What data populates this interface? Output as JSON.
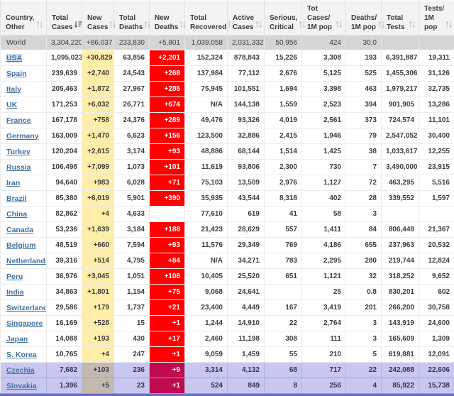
{
  "table": {
    "columns": [
      {
        "key": "name",
        "label": "Country, Other",
        "sort": "unsorted"
      },
      {
        "key": "total_cases",
        "label": "Total Cases",
        "sort": "desc"
      },
      {
        "key": "new_cases",
        "label": "New Cases",
        "sort": "unsorted"
      },
      {
        "key": "total_deaths",
        "label": "Total Deaths",
        "sort": "unsorted"
      },
      {
        "key": "new_deaths",
        "label": "New Deaths",
        "sort": "unsorted"
      },
      {
        "key": "total_recovered",
        "label": "Total Recovered",
        "sort": "unsorted"
      },
      {
        "key": "active_cases",
        "label": "Active Cases",
        "sort": "unsorted"
      },
      {
        "key": "serious_critical",
        "label": "Serious, Critical",
        "sort": "unsorted"
      },
      {
        "key": "tot_cases_1m",
        "label": "Tot Cases/ 1M pop",
        "sort": "unsorted"
      },
      {
        "key": "deaths_1m",
        "label": "Deaths/ 1M pop",
        "sort": "unsorted"
      },
      {
        "key": "total_tests",
        "label": "Total Tests",
        "sort": "unsorted"
      },
      {
        "key": "tests_1m",
        "label": "Tests/ 1M pop",
        "sort": "unsorted"
      }
    ],
    "rows": [
      {
        "type": "world",
        "values": {
          "name": "World",
          "total_cases": "3,304,220",
          "new_cases": "+86,037",
          "total_deaths": "233,830",
          "new_deaths": "+5,801",
          "total_recovered": "1,039,058",
          "active_cases": "2,031,332",
          "serious_critical": "50,956",
          "tot_cases_1m": "424",
          "deaths_1m": "30.0",
          "total_tests": "",
          "tests_1m": ""
        }
      },
      {
        "type": "country",
        "selected": true,
        "values": {
          "name": "USA",
          "total_cases": "1,095,023",
          "new_cases": "+30,829",
          "total_deaths": "63,856",
          "new_deaths": "+2,201",
          "total_recovered": "152,324",
          "active_cases": "878,843",
          "serious_critical": "15,226",
          "tot_cases_1m": "3,308",
          "deaths_1m": "193",
          "total_tests": "6,391,887",
          "tests_1m": "19,311"
        }
      },
      {
        "type": "country",
        "values": {
          "name": "Spain",
          "total_cases": "239,639",
          "new_cases": "+2,740",
          "total_deaths": "24,543",
          "new_deaths": "+268",
          "total_recovered": "137,984",
          "active_cases": "77,112",
          "serious_critical": "2,676",
          "tot_cases_1m": "5,125",
          "deaths_1m": "525",
          "total_tests": "1,455,306",
          "tests_1m": "31,126"
        }
      },
      {
        "type": "country",
        "values": {
          "name": "Italy",
          "total_cases": "205,463",
          "new_cases": "+1,872",
          "total_deaths": "27,967",
          "new_deaths": "+285",
          "total_recovered": "75,945",
          "active_cases": "101,551",
          "serious_critical": "1,694",
          "tot_cases_1m": "3,398",
          "deaths_1m": "463",
          "total_tests": "1,979,217",
          "tests_1m": "32,735"
        }
      },
      {
        "type": "country",
        "values": {
          "name": "UK",
          "total_cases": "171,253",
          "new_cases": "+6,032",
          "total_deaths": "26,771",
          "new_deaths": "+674",
          "total_recovered": "N/A",
          "active_cases": "144,138",
          "serious_critical": "1,559",
          "tot_cases_1m": "2,523",
          "deaths_1m": "394",
          "total_tests": "901,905",
          "tests_1m": "13,286"
        }
      },
      {
        "type": "country",
        "values": {
          "name": "France",
          "total_cases": "167,178",
          "new_cases": "+758",
          "total_deaths": "24,376",
          "new_deaths": "+289",
          "total_recovered": "49,476",
          "active_cases": "93,326",
          "serious_critical": "4,019",
          "tot_cases_1m": "2,561",
          "deaths_1m": "373",
          "total_tests": "724,574",
          "tests_1m": "11,101"
        }
      },
      {
        "type": "country",
        "values": {
          "name": "Germany",
          "total_cases": "163,009",
          "new_cases": "+1,470",
          "total_deaths": "6,623",
          "new_deaths": "+156",
          "total_recovered": "123,500",
          "active_cases": "32,886",
          "serious_critical": "2,415",
          "tot_cases_1m": "1,946",
          "deaths_1m": "79",
          "total_tests": "2,547,052",
          "tests_1m": "30,400"
        }
      },
      {
        "type": "country",
        "values": {
          "name": "Turkey",
          "total_cases": "120,204",
          "new_cases": "+2,615",
          "total_deaths": "3,174",
          "new_deaths": "+93",
          "total_recovered": "48,886",
          "active_cases": "68,144",
          "serious_critical": "1,514",
          "tot_cases_1m": "1,425",
          "deaths_1m": "38",
          "total_tests": "1,033,617",
          "tests_1m": "12,255"
        }
      },
      {
        "type": "country",
        "values": {
          "name": "Russia",
          "total_cases": "106,498",
          "new_cases": "+7,099",
          "total_deaths": "1,073",
          "new_deaths": "+101",
          "total_recovered": "11,619",
          "active_cases": "93,806",
          "serious_critical": "2,300",
          "tot_cases_1m": "730",
          "deaths_1m": "7",
          "total_tests": "3,490,000",
          "tests_1m": "23,915"
        }
      },
      {
        "type": "country",
        "values": {
          "name": "Iran",
          "total_cases": "94,640",
          "new_cases": "+983",
          "total_deaths": "6,028",
          "new_deaths": "+71",
          "total_recovered": "75,103",
          "active_cases": "13,509",
          "serious_critical": "2,976",
          "tot_cases_1m": "1,127",
          "deaths_1m": "72",
          "total_tests": "463,295",
          "tests_1m": "5,516"
        }
      },
      {
        "type": "country",
        "values": {
          "name": "Brazil",
          "total_cases": "85,380",
          "new_cases": "+6,019",
          "total_deaths": "5,901",
          "new_deaths": "+390",
          "total_recovered": "35,935",
          "active_cases": "43,544",
          "serious_critical": "8,318",
          "tot_cases_1m": "402",
          "deaths_1m": "28",
          "total_tests": "339,552",
          "tests_1m": "1,597"
        }
      },
      {
        "type": "country",
        "values": {
          "name": "China",
          "total_cases": "82,862",
          "new_cases": "+4",
          "total_deaths": "4,633",
          "new_deaths": "",
          "total_recovered": "77,610",
          "active_cases": "619",
          "serious_critical": "41",
          "tot_cases_1m": "58",
          "deaths_1m": "3",
          "total_tests": "",
          "tests_1m": ""
        }
      },
      {
        "type": "country",
        "values": {
          "name": "Canada",
          "total_cases": "53,236",
          "new_cases": "+1,639",
          "total_deaths": "3,184",
          "new_deaths": "+188",
          "total_recovered": "21,423",
          "active_cases": "28,629",
          "serious_critical": "557",
          "tot_cases_1m": "1,411",
          "deaths_1m": "84",
          "total_tests": "806,449",
          "tests_1m": "21,367"
        }
      },
      {
        "type": "country",
        "values": {
          "name": "Belgium",
          "total_cases": "48,519",
          "new_cases": "+660",
          "total_deaths": "7,594",
          "new_deaths": "+93",
          "total_recovered": "11,576",
          "active_cases": "29,349",
          "serious_critical": "769",
          "tot_cases_1m": "4,186",
          "deaths_1m": "655",
          "total_tests": "237,963",
          "tests_1m": "20,532"
        }
      },
      {
        "type": "country",
        "values": {
          "name": "Netherlands",
          "total_cases": "39,316",
          "new_cases": "+514",
          "total_deaths": "4,795",
          "new_deaths": "+84",
          "total_recovered": "N/A",
          "active_cases": "34,271",
          "serious_critical": "783",
          "tot_cases_1m": "2,295",
          "deaths_1m": "280",
          "total_tests": "219,744",
          "tests_1m": "12,824"
        }
      },
      {
        "type": "country",
        "values": {
          "name": "Peru",
          "total_cases": "36,976",
          "new_cases": "+3,045",
          "total_deaths": "1,051",
          "new_deaths": "+108",
          "total_recovered": "10,405",
          "active_cases": "25,520",
          "serious_critical": "651",
          "tot_cases_1m": "1,121",
          "deaths_1m": "32",
          "total_tests": "318,252",
          "tests_1m": "9,652"
        }
      },
      {
        "type": "country",
        "values": {
          "name": "India",
          "total_cases": "34,863",
          "new_cases": "+1,801",
          "total_deaths": "1,154",
          "new_deaths": "+75",
          "total_recovered": "9,068",
          "active_cases": "24,641",
          "serious_critical": "",
          "tot_cases_1m": "25",
          "deaths_1m": "0.8",
          "total_tests": "830,201",
          "tests_1m": "602"
        }
      },
      {
        "type": "country",
        "values": {
          "name": "Switzerland",
          "total_cases": "29,586",
          "new_cases": "+179",
          "total_deaths": "1,737",
          "new_deaths": "+21",
          "total_recovered": "23,400",
          "active_cases": "4,449",
          "serious_critical": "167",
          "tot_cases_1m": "3,419",
          "deaths_1m": "201",
          "total_tests": "266,200",
          "tests_1m": "30,758"
        }
      },
      {
        "type": "country",
        "values": {
          "name": "Singapore",
          "total_cases": "16,169",
          "new_cases": "+528",
          "total_deaths": "15",
          "new_deaths": "+1",
          "total_recovered": "1,244",
          "active_cases": "14,910",
          "serious_critical": "22",
          "tot_cases_1m": "2,764",
          "deaths_1m": "3",
          "total_tests": "143,919",
          "tests_1m": "24,600"
        }
      },
      {
        "type": "country",
        "values": {
          "name": "Japan",
          "total_cases": "14,088",
          "new_cases": "+193",
          "total_deaths": "430",
          "new_deaths": "+17",
          "total_recovered": "2,460",
          "active_cases": "11,198",
          "serious_critical": "308",
          "tot_cases_1m": "111",
          "deaths_1m": "3",
          "total_tests": "165,609",
          "tests_1m": "1,309"
        }
      },
      {
        "type": "country",
        "values": {
          "name": "S. Korea",
          "total_cases": "10,765",
          "new_cases": "+4",
          "total_deaths": "247",
          "new_deaths": "+1",
          "total_recovered": "9,059",
          "active_cases": "1,459",
          "serious_critical": "55",
          "tot_cases_1m": "210",
          "deaths_1m": "5",
          "total_tests": "619,881",
          "tests_1m": "12,091"
        }
      },
      {
        "type": "highlight",
        "values": {
          "name": "Czechia",
          "total_cases": "7,682",
          "new_cases": "+103",
          "total_deaths": "236",
          "new_deaths": "+9",
          "total_recovered": "3,314",
          "active_cases": "4,132",
          "serious_critical": "68",
          "tot_cases_1m": "717",
          "deaths_1m": "22",
          "total_tests": "242,088",
          "tests_1m": "22,606"
        }
      },
      {
        "type": "highlight",
        "values": {
          "name": "Slovakia",
          "total_cases": "1,396",
          "new_cases": "+5",
          "total_deaths": "23",
          "new_deaths": "+1",
          "total_recovered": "524",
          "active_cases": "849",
          "serious_critical": "8",
          "tot_cases_1m": "256",
          "deaths_1m": "4",
          "total_tests": "85,922",
          "tests_1m": "15,738"
        }
      }
    ]
  },
  "colors": {
    "header_bg": "#f3f3f3",
    "world_row_bg": "#d5d5d5",
    "new_cases_bg": "#ffeeaa",
    "new_deaths_bg": "#ff0000",
    "highlight_row_bg": "#c7c7f1",
    "highlight_new_cases_bg": "#c3b9af",
    "highlight_new_deaths_bg": "#c00a4e",
    "link_color": "#4173a3",
    "bottom_bar": "#6b6bc8"
  }
}
